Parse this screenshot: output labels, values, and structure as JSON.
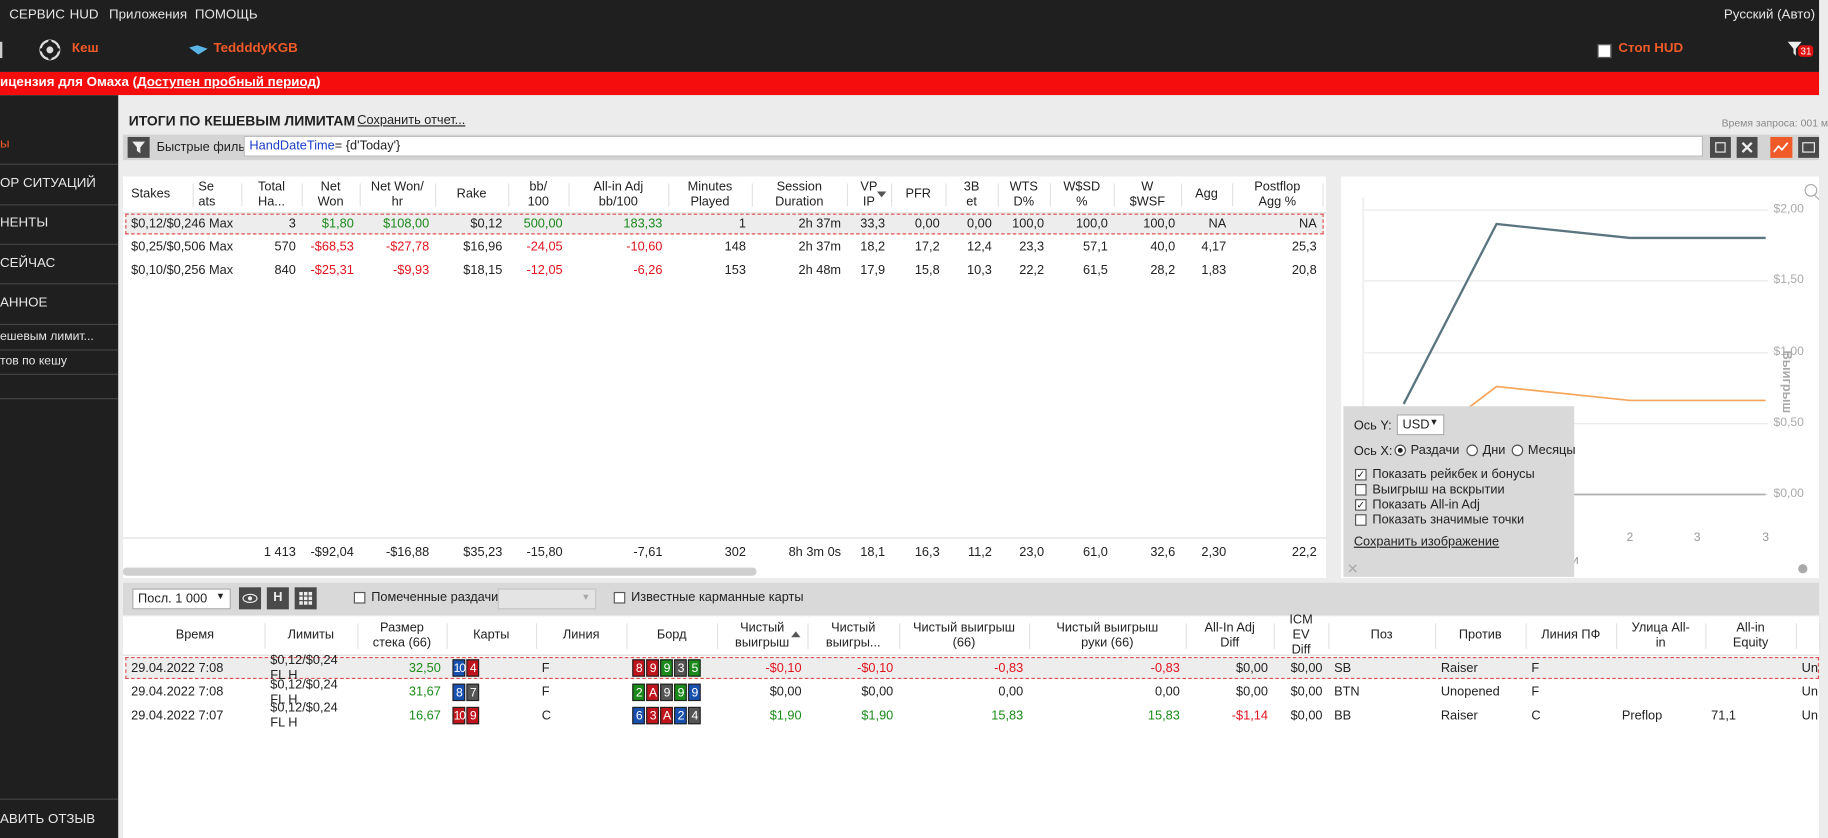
{
  "menu": [
    "СЕРВИС",
    "HUD",
    "Приложения",
    "ПОМОЩЬ"
  ],
  "language": "Русский (Авто)",
  "tabs": {
    "cash": "Кеш",
    "player": "TeddddyKGB",
    "stop_hud": "Стоп HUD",
    "notifications": "31"
  },
  "license_bar": {
    "prefix": "ицензия для Омаха (",
    "link": "Доступен пробный период",
    "suffix": ")"
  },
  "sidebar": {
    "items": [
      "ы",
      "ОР СИТУАЦИЙ",
      "НЕНТЫ",
      "СЕЙЧАС",
      "АННОЕ",
      "ешевым лимит...",
      "тов по кешу"
    ],
    "feedback": "АВИТЬ ОТЗЫВ"
  },
  "report": {
    "title": "ИТОГИ ПО КЕШЕВЫМ ЛИМИТАМ",
    "save": "Сохранить отчет...",
    "query_time": "Время запроса: 001 м"
  },
  "filter": {
    "label": "Быстрые фильт",
    "field": "HandDateTime",
    "expression": "= {d'Today'}"
  },
  "summary_table": {
    "columns": [
      "Stakes",
      "Se\nats",
      "Total\nHa...",
      "Net\nWon",
      "Net Won/\nhr",
      "Rake",
      "bb/\n100",
      "All-in Adj\nbb/100",
      "Minutes\nPlayed",
      "Session\nDuration",
      "VP\nIP",
      "PFR",
      "3B\net",
      "WTS\nD%",
      "W$SD\n%",
      "W\n$WSF",
      "Agg",
      "Postflop\nAgg %"
    ],
    "rows": [
      [
        "$0,12/$0,24",
        "6 Max",
        "3",
        "$1,80",
        "$108,00",
        "$0,12",
        "500,00",
        "183,33",
        "1",
        "2h 37m",
        "33,3",
        "0,00",
        "0,00",
        "100,0",
        "100,0",
        "100,0",
        "NA",
        "NA"
      ],
      [
        "$0,25/$0,50",
        "6 Max",
        "570",
        "-$68,53",
        "-$27,78",
        "$16,96",
        "-24,05",
        "-10,60",
        "148",
        "2h 37m",
        "18,2",
        "17,2",
        "12,4",
        "23,3",
        "57,1",
        "40,0",
        "4,17",
        "25,3"
      ],
      [
        "$0,10/$0,25",
        "6 Max",
        "840",
        "-$25,31",
        "-$9,93",
        "$18,15",
        "-12,05",
        "-6,26",
        "153",
        "2h 48m",
        "17,9",
        "15,8",
        "10,3",
        "22,2",
        "61,5",
        "28,2",
        "1,83",
        "20,8"
      ]
    ],
    "totals": [
      "1 413",
      "-$92,04",
      "-$16,88",
      "$35,23",
      "-15,80",
      "-7,61",
      "302",
      "8h 3m 0s",
      "18,1",
      "16,3",
      "11,2",
      "23,0",
      "61,0",
      "32,6",
      "2,30",
      "22,2"
    ]
  },
  "chart_panel": {
    "yticks": [
      "$2,00",
      "$1,50",
      "$1,00",
      "$0,50",
      "$0,00"
    ],
    "xticks": [
      "2",
      "3",
      "3"
    ],
    "y_label": "Выигрыш",
    "x_label": "чи",
    "settings": {
      "y_axis": "Ось Y:",
      "currency": "USD",
      "x_axis": "Ось X:",
      "x_options": [
        "Раздачи",
        "Дни",
        "Месяцы"
      ],
      "checkboxes": [
        "Показать рейкбек и бонусы",
        "Выигрыш на вскрытии",
        "Показать All-in Adj",
        "Показать значимые точки"
      ],
      "save_image": "Сохранить изображение"
    }
  },
  "hands_toolbar": {
    "limit": "Посл. 1 000",
    "hud_button": "H",
    "marked": "Помеченные раздачи",
    "known_cards": "Известные карманные карты"
  },
  "hands_table": {
    "columns": [
      "Время",
      "Лимиты",
      "Размер\nстека (66)",
      "Карты",
      "Линия",
      "Борд",
      "Чистый\nвыигрыш",
      "Чистый\nвыигры...",
      "Чистый выигрыш\n(66)",
      "Чистый выигрыш\nруки (66)",
      "All-In Adj\nDiff",
      "ICM EV\nDiff",
      "Поз",
      "Против",
      "Линия ПФ",
      "Улица All-\nin",
      "All-in\nEquity",
      null
    ],
    "rows": [
      [
        "29.04.2022 7:08",
        "$0,12/$0,24 FL H",
        "32,50",
        [
          {
            "rank": "10",
            "color": "#1850b0"
          },
          {
            "rank": "4",
            "color": "#c0141c"
          }
        ],
        "F",
        [
          {
            "rank": "8",
            "color": "#c0141c"
          },
          {
            "rank": "9",
            "color": "#c0141c"
          },
          {
            "rank": "9",
            "color": "#1a8a1a"
          },
          {
            "rank": "3",
            "color": "#555555"
          },
          {
            "rank": "5",
            "color": "#1a8a1a"
          }
        ],
        "-$0,10",
        "-$0,10",
        "-0,83",
        "-0,83",
        "$0,00",
        "$0,00",
        "SB",
        "Raiser",
        "F",
        null,
        null,
        "Un"
      ],
      [
        "29.04.2022 7:08",
        "$0,12/$0,24 FL H",
        "31,67",
        [
          {
            "rank": "8",
            "color": "#1850b0"
          },
          {
            "rank": "7",
            "color": "#555555"
          }
        ],
        "F",
        [
          {
            "rank": "2",
            "color": "#1a8a1a"
          },
          {
            "rank": "A",
            "color": "#c0141c"
          },
          {
            "rank": "9",
            "color": "#555555"
          },
          {
            "rank": "9",
            "color": "#1a8a1a"
          },
          {
            "rank": "9",
            "color": "#1850b0"
          }
        ],
        "$0,00",
        "$0,00",
        "0,00",
        "0,00",
        "$0,00",
        "$0,00",
        "BTN",
        "Unopened",
        "F",
        null,
        null,
        "Un"
      ],
      [
        "29.04.2022 7:07",
        "$0,12/$0,24 FL H",
        "16,67",
        [
          {
            "rank": "10",
            "color": "#c0141c"
          },
          {
            "rank": "9",
            "color": "#c0141c"
          }
        ],
        "C",
        [
          {
            "rank": "6",
            "color": "#1850b0"
          },
          {
            "rank": "3",
            "color": "#c0141c"
          },
          {
            "rank": "A",
            "color": "#c0141c"
          },
          {
            "rank": "2",
            "color": "#1850b0"
          },
          {
            "rank": "4",
            "color": "#555555"
          }
        ],
        "$1,90",
        "$1,90",
        "15,83",
        "15,83",
        "-$1,14",
        "$0,00",
        "BB",
        "Raiser",
        "C",
        "Preflop",
        "71,1",
        "Un"
      ]
    ]
  }
}
